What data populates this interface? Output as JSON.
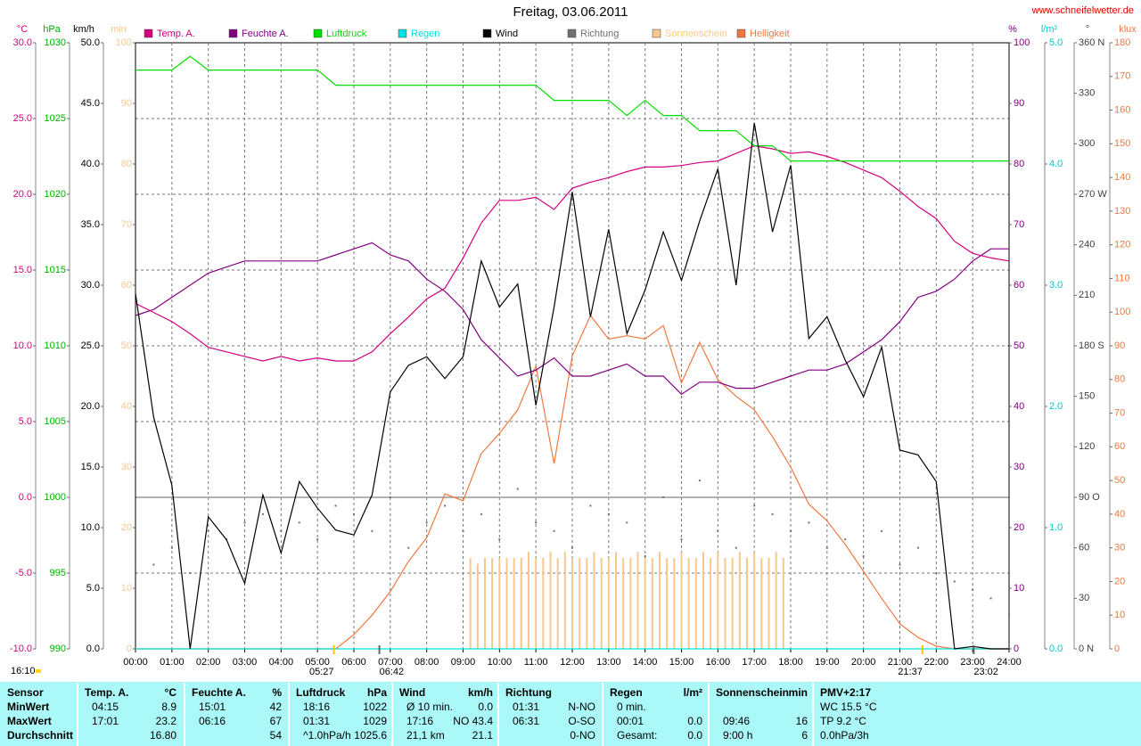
{
  "chart_data": {
    "type": "line",
    "title": "Freitag, 03.06.2011",
    "source": "www.schneifelwetter.de",
    "time_label": "16:10",
    "x": [
      0,
      0.5,
      1,
      1.5,
      2,
      2.5,
      3,
      3.5,
      4,
      4.5,
      5,
      5.5,
      6,
      6.5,
      7,
      7.5,
      8,
      8.5,
      9,
      9.5,
      10,
      10.5,
      11,
      11.5,
      12,
      12.5,
      13,
      13.5,
      14,
      14.5,
      15,
      15.5,
      16,
      16.5,
      17,
      17.5,
      18,
      18.5,
      19,
      19.5,
      20,
      20.5,
      21,
      21.5,
      22,
      22.5,
      23,
      23.5,
      24
    ],
    "xlim": [
      0,
      24
    ],
    "xticks": [
      {
        "value": 0,
        "label": "00:00"
      },
      {
        "value": 1,
        "label": "01:00"
      },
      {
        "value": 2,
        "label": "02:00"
      },
      {
        "value": 3,
        "label": "03:00"
      },
      {
        "value": 4,
        "label": "04:00"
      },
      {
        "value": 5,
        "label": "05:00"
      },
      {
        "value": 6,
        "label": "06:00"
      },
      {
        "value": 7,
        "label": "07:00"
      },
      {
        "value": 8,
        "label": "08:00"
      },
      {
        "value": 9,
        "label": "09:00"
      },
      {
        "value": 10,
        "label": "10:00"
      },
      {
        "value": 11,
        "label": "11:00"
      },
      {
        "value": 12,
        "label": "12:00"
      },
      {
        "value": 13,
        "label": "13:00"
      },
      {
        "value": 14,
        "label": "14:00"
      },
      {
        "value": 15,
        "label": "15:00"
      },
      {
        "value": 16,
        "label": "16:00"
      },
      {
        "value": 17,
        "label": "17:00"
      },
      {
        "value": 18,
        "label": "18:00"
      },
      {
        "value": 19,
        "label": "19:00"
      },
      {
        "value": 20,
        "label": "20:00"
      },
      {
        "value": 21,
        "label": "21:00"
      },
      {
        "value": 22,
        "label": "22:00"
      },
      {
        "value": 23,
        "label": "23:00"
      },
      {
        "value": 24,
        "label": "24:00"
      }
    ],
    "grid": true,
    "axes": [
      {
        "unit": "°C",
        "color": "#d4007f",
        "lim": [
          -10,
          30
        ],
        "ticks": [
          {
            "value": -10,
            "label": "-10.0"
          },
          {
            "value": -5,
            "label": "-5.0"
          },
          {
            "value": 0,
            "label": "0.0"
          },
          {
            "value": 5,
            "label": "5.0"
          },
          {
            "value": 10,
            "label": "10.0"
          },
          {
            "value": 15,
            "label": "15.0"
          },
          {
            "value": 20,
            "label": "20.0"
          },
          {
            "value": 25,
            "label": "25.0"
          },
          {
            "value": 30,
            "label": "30.0"
          }
        ]
      },
      {
        "unit": "hPa",
        "color": "#00b000",
        "lim": [
          990,
          1030
        ],
        "ticks": [
          990,
          995,
          1000,
          1005,
          1010,
          1015,
          1020,
          1025,
          1030
        ]
      },
      {
        "unit": "km/h",
        "color": "#000000",
        "lim": [
          0,
          50
        ],
        "ticks": [
          {
            "value": 0,
            "label": "0.0"
          },
          {
            "value": 5,
            "label": "5.0"
          },
          {
            "value": 10,
            "label": "10.0"
          },
          {
            "value": 15,
            "label": "15.0"
          },
          {
            "value": 20,
            "label": "20.0"
          },
          {
            "value": 25,
            "label": "25.0"
          },
          {
            "value": 30,
            "label": "30.0"
          },
          {
            "value": 35,
            "label": "35.0"
          },
          {
            "value": 40,
            "label": "40.0"
          },
          {
            "value": 45,
            "label": "45.0"
          },
          {
            "value": 50,
            "label": "50.0"
          }
        ]
      },
      {
        "unit": "min",
        "color": "#f5c890",
        "lim": [
          0,
          100
        ],
        "ticks": [
          0,
          10,
          20,
          30,
          40,
          50,
          60,
          70,
          80,
          90,
          100
        ]
      },
      {
        "unit": "%",
        "color": "#800080",
        "lim": [
          0,
          100
        ],
        "ticks": [
          0,
          10,
          20,
          30,
          40,
          50,
          60,
          70,
          80,
          90,
          100
        ]
      },
      {
        "unit": "l/m²",
        "color": "#00c8c8",
        "lim": [
          0,
          5
        ],
        "ticks": [
          {
            "value": 0,
            "label": "0.0"
          },
          {
            "value": 1,
            "label": "1.0"
          },
          {
            "value": 2,
            "label": "2.0"
          },
          {
            "value": 3,
            "label": "3.0"
          },
          {
            "value": 4,
            "label": "4.0"
          },
          {
            "value": 5,
            "label": "5.0"
          }
        ]
      },
      {
        "unit": "°",
        "color": "#404040",
        "lim": [
          0,
          360
        ],
        "ticks": [
          {
            "value": 0,
            "label": "0 N"
          },
          30,
          60,
          {
            "value": 90,
            "label": "90 O"
          },
          120,
          150,
          {
            "value": 180,
            "label": "180 S"
          },
          210,
          240,
          {
            "value": 270,
            "label": "270 W"
          },
          300,
          330,
          {
            "value": 360,
            "label": "360 N"
          }
        ]
      },
      {
        "unit": "klux",
        "color": "#f07840",
        "lim": [
          0,
          180
        ],
        "ticks": [
          0,
          10,
          20,
          30,
          40,
          50,
          60,
          70,
          80,
          90,
          100,
          110,
          120,
          130,
          140,
          150,
          160,
          170,
          180
        ]
      }
    ],
    "series": [
      {
        "name": "Temp. A.",
        "color": "#d4007f",
        "axis": 0,
        "style": "line",
        "values": [
          12.8,
          12.2,
          11.6,
          10.8,
          9.9,
          9.6,
          9.3,
          9.0,
          9.3,
          9.0,
          9.2,
          9.0,
          9.0,
          9.6,
          10.8,
          11.9,
          13.1,
          13.8,
          15.8,
          18.1,
          19.6,
          19.6,
          19.8,
          19.0,
          20.4,
          20.8,
          21.1,
          21.5,
          21.8,
          21.8,
          21.9,
          22.1,
          22.2,
          22.7,
          23.2,
          23.0,
          22.7,
          22.8,
          22.5,
          22.1,
          21.6,
          21.1,
          20.2,
          19.2,
          18.4,
          16.9,
          16.1,
          15.8,
          15.6
        ]
      },
      {
        "name": "Feuchte A.",
        "color": "#800080",
        "axis": 4,
        "style": "line",
        "values": [
          55,
          56,
          58,
          60,
          62,
          63,
          64,
          64,
          64,
          64,
          64,
          65,
          66,
          67,
          65,
          64,
          61,
          59,
          56,
          51,
          48,
          45,
          46,
          48,
          45,
          45,
          46,
          47,
          45,
          45,
          42,
          44,
          44,
          43,
          43,
          44,
          45,
          46,
          46,
          47,
          49,
          51,
          54,
          58,
          59,
          61,
          64,
          66,
          66
        ]
      },
      {
        "name": "Luftdruck",
        "color": "#00dd00",
        "axis": 1,
        "style": "line",
        "values": [
          1028.2,
          1028.2,
          1028.2,
          1029.1,
          1028.2,
          1028.2,
          1028.2,
          1028.2,
          1028.2,
          1028.2,
          1028.2,
          1027.2,
          1027.2,
          1027.2,
          1027.2,
          1027.2,
          1027.2,
          1027.2,
          1027.2,
          1027.2,
          1027.2,
          1027.2,
          1027.2,
          1026.2,
          1026.2,
          1026.2,
          1026.2,
          1025.2,
          1026.2,
          1025.2,
          1025.2,
          1024.2,
          1024.2,
          1024.2,
          1023.2,
          1023.2,
          1022.2,
          1022.2,
          1022.2,
          1022.2,
          1022.2,
          1022.2,
          1022.2,
          1022.2,
          1022.2,
          1022.2,
          1022.2,
          1022.2,
          1022.2
        ]
      },
      {
        "name": "Regen",
        "color": "#00e0e0",
        "axis": 5,
        "style": "line",
        "values": [
          0,
          0,
          0,
          0,
          0,
          0,
          0,
          0,
          0,
          0,
          0,
          0,
          0,
          0,
          0,
          0,
          0,
          0,
          0,
          0,
          0,
          0,
          0,
          0,
          0,
          0,
          0,
          0,
          0,
          0,
          0,
          0,
          0,
          0,
          0,
          0,
          0,
          0,
          0,
          0,
          0,
          0,
          0,
          0,
          0,
          0,
          0,
          0,
          0
        ]
      },
      {
        "name": "Wind",
        "color": "#000000",
        "axis": 2,
        "style": "line",
        "values": [
          29.3,
          19.1,
          13.5,
          0,
          10.9,
          9.0,
          5.4,
          12.7,
          7.9,
          13.8,
          11.6,
          9.8,
          9.4,
          12.7,
          21.2,
          23.4,
          24.1,
          22.3,
          24.1,
          32.0,
          28.2,
          30.1,
          20.1,
          28.2,
          37.7,
          27.4,
          34.6,
          26.0,
          29.6,
          34.4,
          30.4,
          35.3,
          39.6,
          30.0,
          43.4,
          34.4,
          39.9,
          25.6,
          27.4,
          23.8,
          20.8,
          24.9,
          16.4,
          16.0,
          13.8,
          0,
          0.2,
          0,
          0
        ]
      },
      {
        "name": "Richtung",
        "color": "#707070",
        "axis": 6,
        "style": "dots",
        "values": [
          55,
          50,
          60,
          45,
          70,
          65,
          75,
          80,
          70,
          75,
          65,
          85,
          80,
          70,
          90,
          60,
          75,
          85,
          70,
          80,
          65,
          95,
          75,
          70,
          60,
          85,
          80,
          75,
          55,
          90,
          65,
          100,
          70,
          60,
          85,
          80,
          70,
          75,
          60,
          65,
          55,
          70,
          50,
          60,
          45,
          40,
          35,
          30,
          20
        ]
      },
      {
        "name": "Sonnenschein",
        "color": "#f5c890",
        "axis": 3,
        "style": "bars",
        "x": [
          9.2,
          9.4,
          9.6,
          9.8,
          10,
          10.2,
          10.4,
          10.6,
          10.8,
          11,
          11.2,
          11.4,
          11.6,
          11.8,
          12,
          12.2,
          12.4,
          12.6,
          12.8,
          13,
          13.2,
          13.4,
          13.6,
          13.8,
          14,
          14.2,
          14.4,
          14.6,
          14.8,
          15,
          15.2,
          15.4,
          15.6,
          15.8,
          16,
          16.2,
          16.4,
          16.6,
          16.8,
          17,
          17.2,
          17.4,
          17.6,
          17.8
        ],
        "values": [
          15,
          14,
          15,
          15,
          15,
          15,
          15,
          15,
          16,
          15,
          15,
          16,
          15,
          16,
          15,
          15,
          15,
          16,
          15,
          15,
          16,
          15,
          15,
          16,
          15,
          15,
          16,
          15,
          15,
          16,
          15,
          15,
          16,
          15,
          16,
          15,
          15,
          16,
          15,
          16,
          15,
          15,
          16,
          15
        ]
      },
      {
        "name": "Helligkeit",
        "color": "#f07840",
        "axis": 7,
        "style": "line",
        "values": [
          0,
          0,
          0,
          0,
          0,
          0,
          0,
          0,
          0,
          0,
          0,
          0,
          4.2,
          10,
          17,
          26,
          33,
          46,
          44,
          58,
          64,
          71,
          84,
          55,
          87,
          99,
          92,
          93,
          92,
          96,
          79,
          91,
          80,
          75,
          71,
          63,
          54,
          43,
          38,
          31,
          23,
          15,
          7.4,
          3.4,
          0.8,
          0,
          0,
          0,
          0
        ]
      }
    ],
    "annotations": [
      {
        "x": 5.45,
        "label": "05:27"
      },
      {
        "x": 6.7,
        "label": "06:42"
      },
      {
        "x": 21.62,
        "label": "21:37"
      },
      {
        "x": 23.03,
        "label": "23:02"
      }
    ]
  },
  "table": {
    "row_names": [
      "Sensor",
      "MinWert",
      "MaxWert",
      "Durchschnitt"
    ],
    "columns": [
      {
        "title": "Temp. A.",
        "unit": "°C",
        "rows": [
          [
            "04:15",
            "8.9"
          ],
          [
            "17:01",
            "23.2"
          ],
          [
            null,
            "16.80"
          ]
        ]
      },
      {
        "title": "Feuchte A.",
        "unit": "%",
        "rows": [
          [
            "15:01",
            "42"
          ],
          [
            "06:16",
            "67"
          ],
          [
            null,
            "54"
          ]
        ]
      },
      {
        "title": "Luftdruck",
        "unit": "hPa",
        "rows": [
          [
            "18:16",
            "1022"
          ],
          [
            "01:31",
            "1029"
          ],
          [
            "^1.0hPa/h",
            "1025.6"
          ]
        ]
      },
      {
        "title": "Wind",
        "unit": "km/h",
        "rows": [
          [
            "Ø 10 min.",
            "0.0"
          ],
          [
            "17:16",
            "NO 43.4"
          ],
          [
            "21,1 km",
            "21.1"
          ]
        ]
      },
      {
        "title": "Richtung",
        "unit": null,
        "rows": [
          [
            "01:31",
            "N-NO"
          ],
          [
            "06:31",
            "O-SO"
          ],
          [
            null,
            "0-NO"
          ]
        ]
      },
      {
        "title": "Regen",
        "unit": "l/m²",
        "rows": [
          [
            "0 min.",
            null
          ],
          [
            "00:01",
            "0.0"
          ],
          [
            "Gesamt:",
            "0.0"
          ]
        ]
      },
      {
        "title": "Sonnenschein",
        "unit": "min",
        "rows": [
          [
            null,
            null
          ],
          [
            "09:46",
            "16"
          ],
          [
            "9:00 h",
            "6"
          ]
        ]
      },
      {
        "title": "PMV+2:17",
        "unit": null,
        "rows": [
          [
            "WC 15.5 °C",
            null
          ],
          [
            "TP 9.2 °C",
            null
          ],
          [
            "0.0hPa/3h",
            null
          ]
        ]
      }
    ]
  }
}
